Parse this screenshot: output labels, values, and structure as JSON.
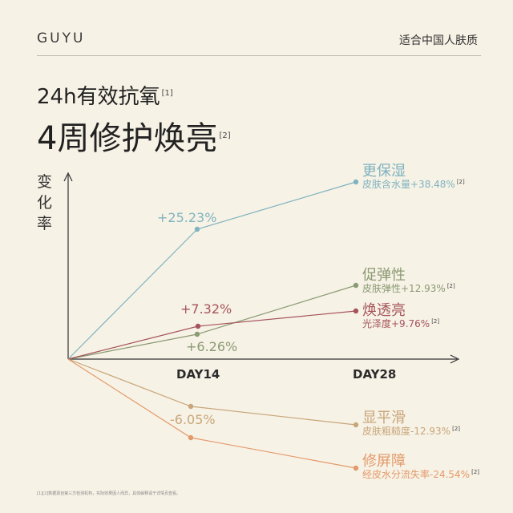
{
  "header": {
    "brand": "GUYU",
    "tagline": "适合中国人肤质"
  },
  "headline": {
    "line1": "24h有效抗氧",
    "line1_ref": "[1]",
    "line2": "4周修护焕亮",
    "line2_ref": "[2]"
  },
  "footnote": "[1][2]数据源自第三方检测机构，实际效果因人而异，具体解释请于详情页查看。",
  "colors": {
    "blue": "#7fb3bf",
    "green": "#8a9a72",
    "red": "#a5545a",
    "tan": "#c8a67a",
    "orange": "#e39a6a"
  },
  "chart_data": {
    "type": "line",
    "ylabel": "变化率",
    "categories": [
      "",
      "DAY14",
      "DAY28"
    ],
    "series": [
      {
        "key": "hydration",
        "name": "更保湿",
        "desc": "皮肤含水量+38.48%",
        "ref": "[2]",
        "mid_label": "+25.23%",
        "values": [
          0,
          25.23,
          38.48
        ],
        "color": "#7fb3bf"
      },
      {
        "key": "elasticity",
        "name": "促弹性",
        "desc": "皮肤弹性+12.93%",
        "ref": "[2]",
        "mid_label": "+6.26%",
        "values": [
          0,
          6.26,
          12.93
        ],
        "color": "#8a9a72"
      },
      {
        "key": "radiance",
        "name": "焕透亮",
        "desc": "光泽度+9.76%",
        "ref": "[2]",
        "mid_label": "+7.32%",
        "values": [
          0,
          7.32,
          9.76
        ],
        "color": "#a5545a"
      },
      {
        "key": "smooth",
        "name": "显平滑",
        "desc": "皮肤粗糙度-12.93%",
        "ref": "[2]",
        "mid_label": "-6.05%",
        "values": [
          0,
          -6.05,
          -12.93
        ],
        "color": "#c8a67a"
      },
      {
        "key": "barrier",
        "name": "修屏障",
        "desc": "经皮水分流失率-24.54%",
        "ref": "[2]",
        "mid_label": "",
        "values": [
          0,
          -10.5,
          -24.54
        ],
        "color": "#e39a6a"
      }
    ]
  }
}
